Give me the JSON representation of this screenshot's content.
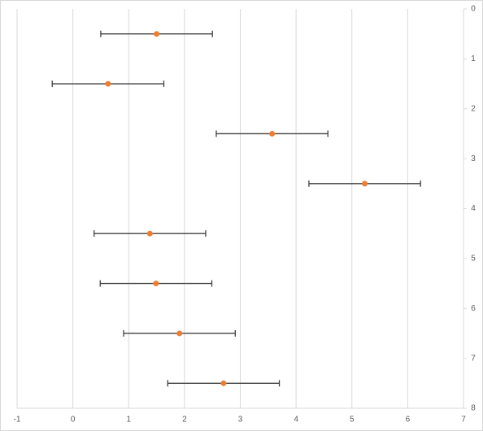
{
  "chart_data": {
    "type": "scatter",
    "series": [
      {
        "color": "#ed7d31",
        "error_color": "#404040",
        "x": [
          1.5,
          0.63,
          3.57,
          5.23,
          1.38,
          1.49,
          1.91,
          2.7
        ],
        "y": [
          0.5,
          1.5,
          2.5,
          3.5,
          4.5,
          5.5,
          6.5,
          7.5
        ],
        "xerr": [
          1,
          1,
          1,
          1,
          1,
          1,
          1,
          1
        ]
      }
    ],
    "xlim": [
      -1,
      7
    ],
    "xticks": [
      -1,
      0,
      1,
      2,
      3,
      4,
      5,
      6,
      7
    ],
    "ylim": [
      0,
      8
    ],
    "yticks": [
      0,
      1,
      2,
      3,
      4,
      5,
      6,
      7,
      8
    ],
    "y_reversed": true,
    "y_axis_side": "right",
    "grid": "x"
  }
}
